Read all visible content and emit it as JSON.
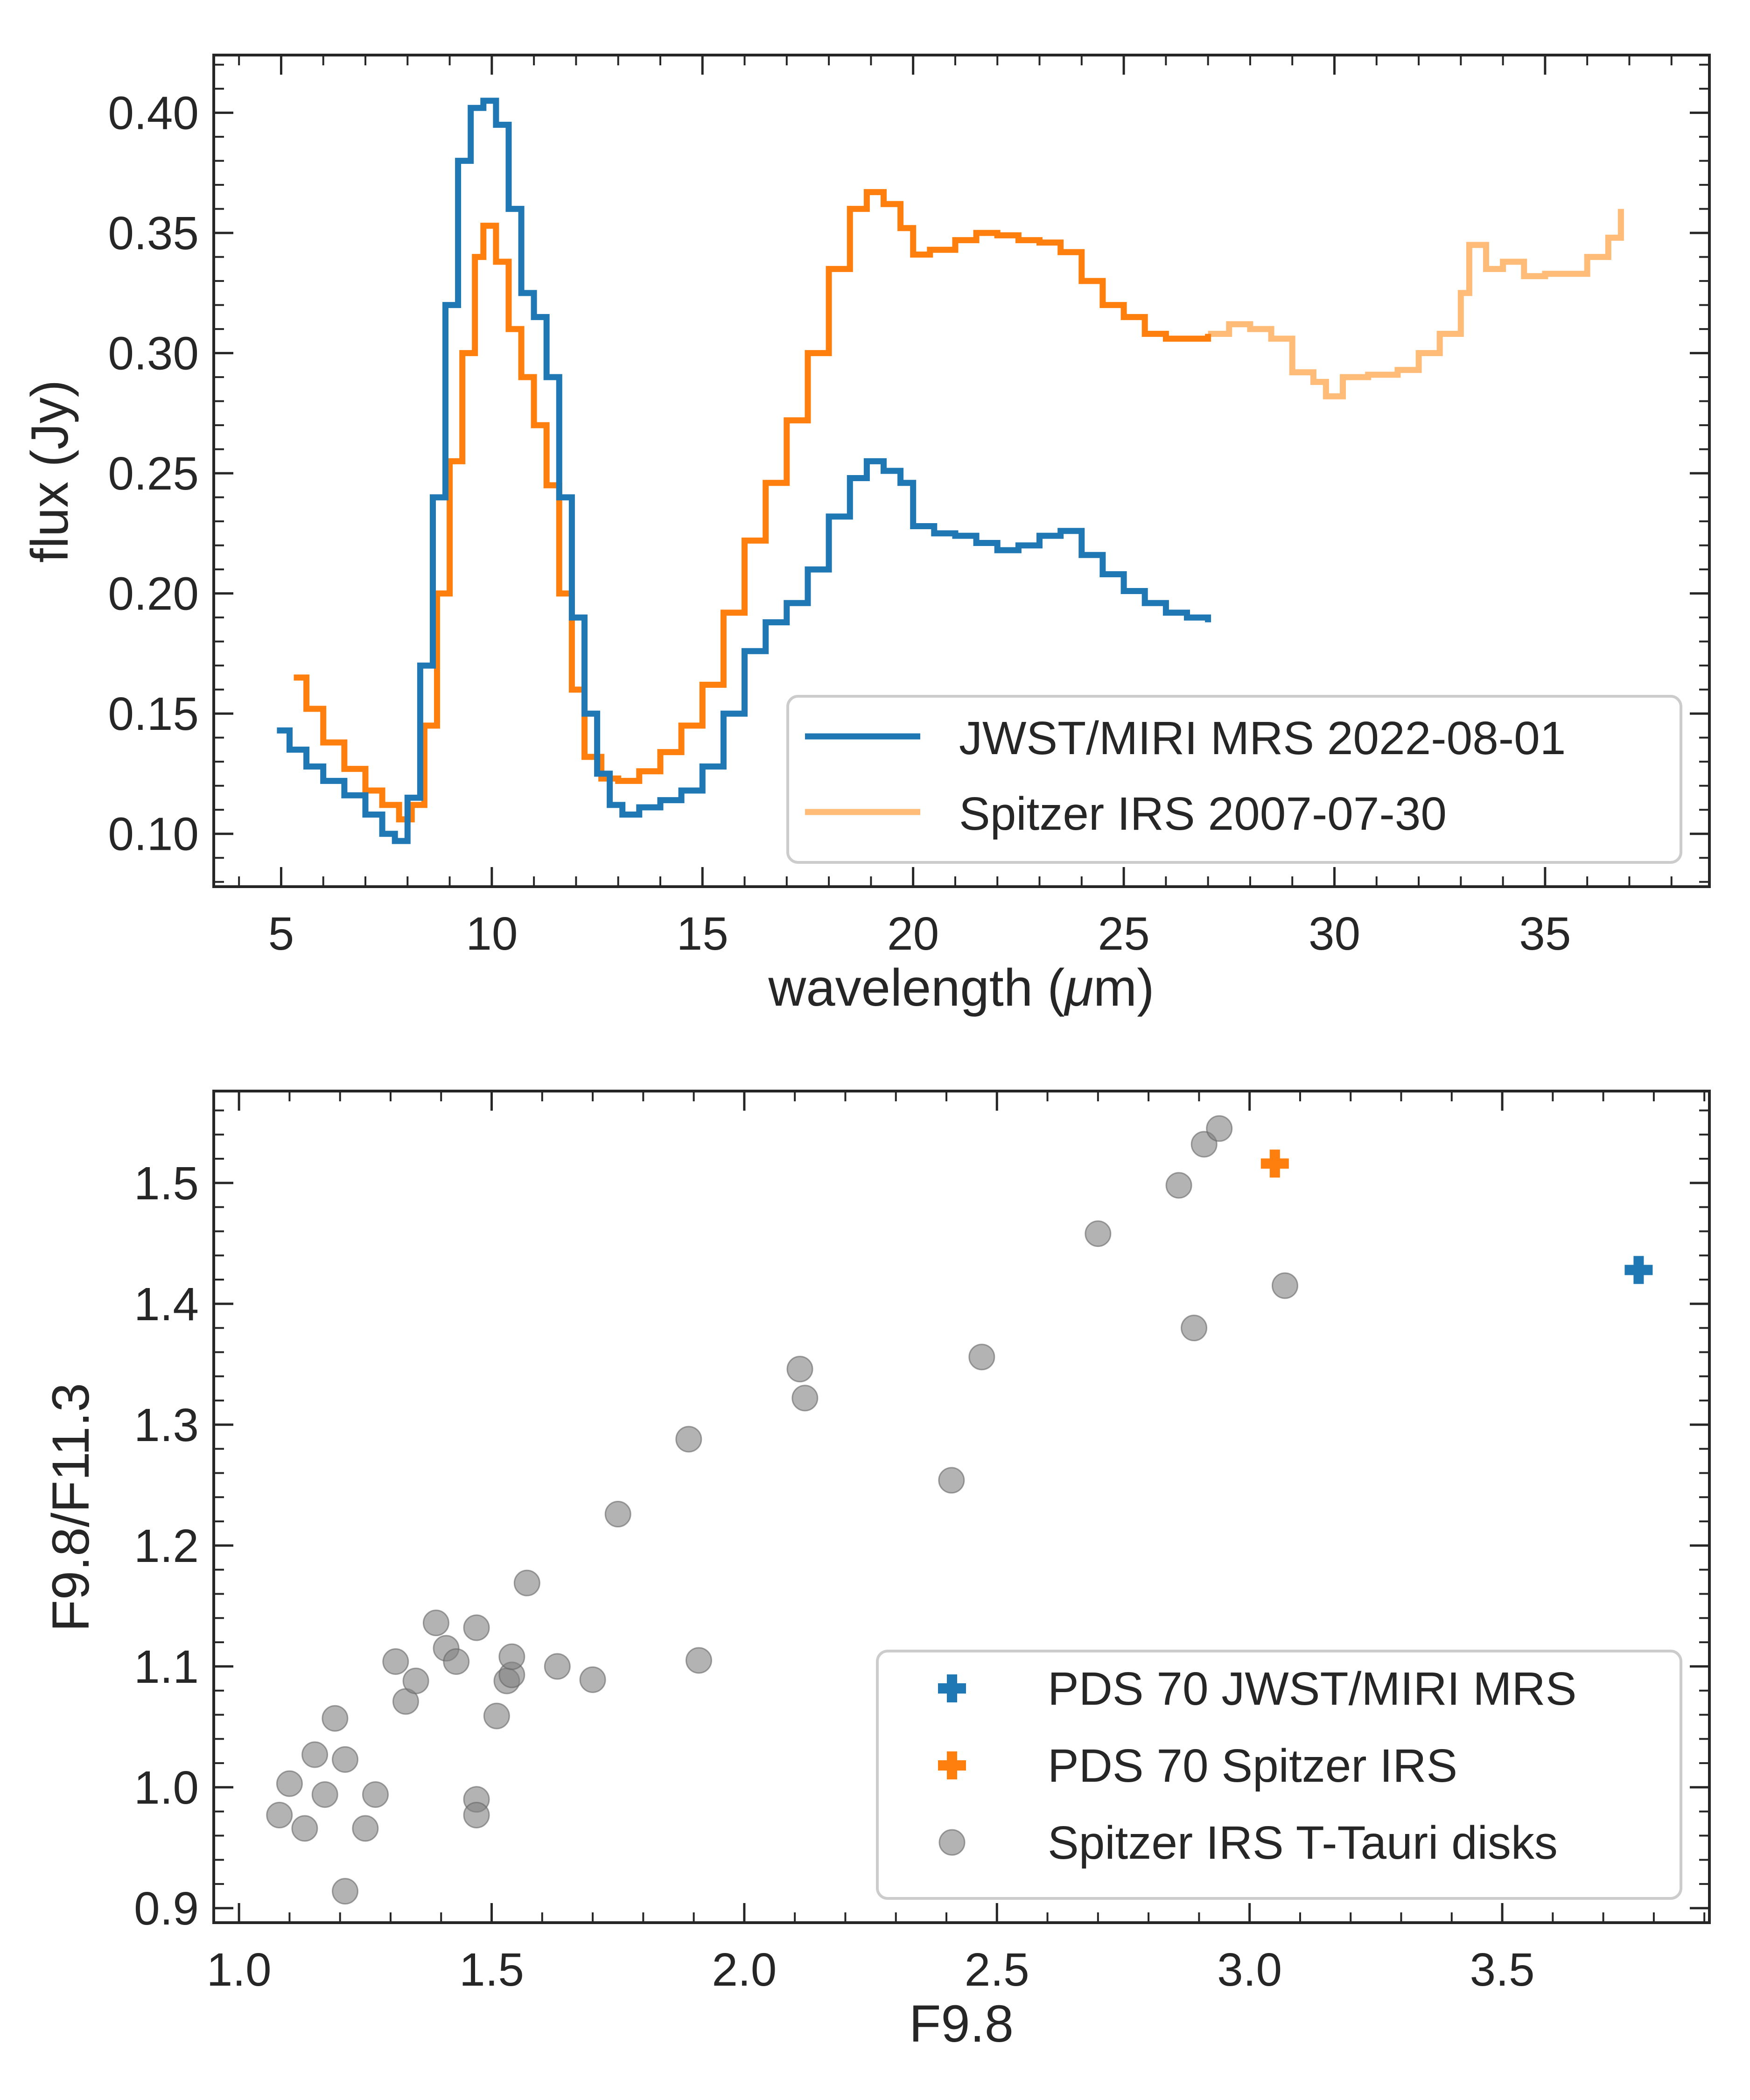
{
  "chart_data": [
    {
      "type": "line",
      "title": "",
      "xlabel_main": "wavelength (",
      "xlabel_mu": "μ",
      "xlabel_end": "m)",
      "ylabel": "flux (Jy)",
      "xlim": [
        3.4,
        38.9
      ],
      "ylim": [
        0.078,
        0.424
      ],
      "xticks": [
        5,
        10,
        15,
        20,
        25,
        30,
        35
      ],
      "xtick_labels": [
        "5",
        "10",
        "15",
        "20",
        "25",
        "30",
        "35"
      ],
      "yticks": [
        0.1,
        0.15,
        0.2,
        0.25,
        0.3,
        0.35,
        0.4
      ],
      "ytick_labels": [
        "0.10",
        "0.15",
        "0.20",
        "0.25",
        "0.30",
        "0.35",
        "0.40"
      ],
      "grid": false,
      "legend_position": "lower-right",
      "series": [
        {
          "name": "JWST/MIRI MRS 2022-08-01",
          "color": "#1f77b4",
          "x": [
            4.9,
            5.2,
            5.6,
            6.0,
            6.5,
            7.0,
            7.4,
            7.7,
            8.0,
            8.3,
            8.6,
            8.9,
            9.2,
            9.5,
            9.8,
            10.1,
            10.4,
            10.7,
            11.0,
            11.3,
            11.6,
            11.9,
            12.2,
            12.5,
            12.8,
            13.1,
            13.5,
            14.0,
            14.5,
            15.0,
            15.5,
            16.0,
            16.5,
            17.0,
            17.5,
            18.0,
            18.5,
            18.9,
            19.3,
            19.7,
            20.0,
            20.5,
            21.0,
            21.5,
            22.0,
            22.5,
            23.0,
            23.5,
            24.0,
            24.5,
            25.0,
            25.5,
            26.0,
            26.5,
            27.0
          ],
          "y": [
            0.143,
            0.135,
            0.128,
            0.122,
            0.116,
            0.108,
            0.1,
            0.097,
            0.115,
            0.17,
            0.24,
            0.32,
            0.38,
            0.402,
            0.405,
            0.395,
            0.36,
            0.325,
            0.315,
            0.29,
            0.24,
            0.19,
            0.15,
            0.125,
            0.112,
            0.108,
            0.111,
            0.114,
            0.118,
            0.128,
            0.15,
            0.176,
            0.188,
            0.196,
            0.21,
            0.232,
            0.248,
            0.255,
            0.251,
            0.246,
            0.228,
            0.225,
            0.224,
            0.221,
            0.218,
            0.22,
            0.224,
            0.226,
            0.216,
            0.208,
            0.201,
            0.196,
            0.192,
            0.19,
            0.188
          ]
        },
        {
          "name": "",
          "color": "#ff7f0e",
          "x": [
            5.3,
            5.6,
            6.0,
            6.5,
            7.0,
            7.4,
            7.8,
            8.1,
            8.4,
            8.7,
            9.0,
            9.3,
            9.6,
            9.8,
            10.1,
            10.4,
            10.7,
            11.0,
            11.3,
            11.6,
            11.9,
            12.2,
            12.6,
            13.0,
            13.5,
            14.0,
            14.5,
            15.0,
            15.5,
            16.0,
            16.5,
            17.0,
            17.5,
            18.0,
            18.5,
            18.9,
            19.3,
            19.7,
            20.0,
            20.4,
            21.0,
            21.5,
            22.0,
            22.5,
            23.0,
            23.5,
            24.0,
            24.5,
            25.0,
            25.5,
            26.0,
            26.5,
            27.0
          ],
          "y": [
            0.165,
            0.152,
            0.138,
            0.127,
            0.118,
            0.112,
            0.106,
            0.112,
            0.145,
            0.2,
            0.255,
            0.3,
            0.34,
            0.353,
            0.338,
            0.31,
            0.29,
            0.27,
            0.245,
            0.2,
            0.16,
            0.132,
            0.123,
            0.122,
            0.126,
            0.134,
            0.145,
            0.162,
            0.192,
            0.222,
            0.246,
            0.272,
            0.3,
            0.335,
            0.36,
            0.367,
            0.362,
            0.352,
            0.341,
            0.343,
            0.347,
            0.35,
            0.349,
            0.347,
            0.346,
            0.342,
            0.33,
            0.32,
            0.315,
            0.308,
            0.306,
            0.306,
            0.308
          ]
        },
        {
          "name": "Spitzer IRS 2007-07-30",
          "color": "#ffbb78",
          "x": [
            27.0,
            27.5,
            28.0,
            28.5,
            29.0,
            29.5,
            29.8,
            30.2,
            30.8,
            31.5,
            32.0,
            32.5,
            33.0,
            33.2,
            33.6,
            34.0,
            34.5,
            35.0,
            35.5,
            36.0,
            36.5,
            36.8
          ],
          "y": [
            0.308,
            0.312,
            0.31,
            0.306,
            0.292,
            0.288,
            0.282,
            0.29,
            0.291,
            0.293,
            0.3,
            0.308,
            0.325,
            0.345,
            0.335,
            0.338,
            0.332,
            0.333,
            0.333,
            0.34,
            0.348,
            0.36
          ]
        }
      ]
    },
    {
      "type": "scatter",
      "title": "",
      "xlabel": "F9.8",
      "ylabel": "F9.8/F11.3",
      "xlim": [
        0.95,
        3.91
      ],
      "ylim": [
        0.888,
        1.576
      ],
      "xticks": [
        1.0,
        1.5,
        2.0,
        2.5,
        3.0,
        3.5
      ],
      "xtick_labels": [
        "1.0",
        "1.5",
        "2.0",
        "2.5",
        "3.0",
        "3.5"
      ],
      "yticks": [
        0.9,
        1.0,
        1.1,
        1.2,
        1.3,
        1.4,
        1.5
      ],
      "ytick_labels": [
        "0.9",
        "1.0",
        "1.1",
        "1.2",
        "1.3",
        "1.4",
        "1.5"
      ],
      "grid": false,
      "legend_position": "lower-right",
      "series": [
        {
          "name": "PDS 70 JWST/MIRI MRS",
          "color": "#1f77b4",
          "marker": "plus",
          "points": [
            [
              3.77,
              1.428
            ]
          ]
        },
        {
          "name": "PDS 70 Spitzer IRS",
          "color": "#ff7f0e",
          "marker": "plus",
          "points": [
            [
              3.05,
              1.516
            ]
          ]
        },
        {
          "name": "Spitzer IRS T-Tauri disks",
          "color": "#808080",
          "marker": "circle",
          "points": [
            [
              1.08,
              0.977
            ],
            [
              1.1,
              1.003
            ],
            [
              1.13,
              0.966
            ],
            [
              1.15,
              1.027
            ],
            [
              1.17,
              0.994
            ],
            [
              1.19,
              1.057
            ],
            [
              1.21,
              1.023
            ],
            [
              1.21,
              0.914
            ],
            [
              1.25,
              0.966
            ],
            [
              1.27,
              0.994
            ],
            [
              1.31,
              1.104
            ],
            [
              1.33,
              1.071
            ],
            [
              1.35,
              1.088
            ],
            [
              1.39,
              1.136
            ],
            [
              1.41,
              1.115
            ],
            [
              1.43,
              1.104
            ],
            [
              1.47,
              1.132
            ],
            [
              1.47,
              0.99
            ],
            [
              1.47,
              0.977
            ],
            [
              1.51,
              1.059
            ],
            [
              1.53,
              1.088
            ],
            [
              1.54,
              1.093
            ],
            [
              1.54,
              1.108
            ],
            [
              1.57,
              1.169
            ],
            [
              1.63,
              1.1
            ],
            [
              1.7,
              1.089
            ],
            [
              1.75,
              1.226
            ],
            [
              1.89,
              1.288
            ],
            [
              1.91,
              1.105
            ],
            [
              2.11,
              1.346
            ],
            [
              2.12,
              1.322
            ],
            [
              2.41,
              1.254
            ],
            [
              2.47,
              1.356
            ],
            [
              2.7,
              1.458
            ],
            [
              2.86,
              1.498
            ],
            [
              2.89,
              1.38
            ],
            [
              2.91,
              1.532
            ],
            [
              2.94,
              1.545
            ],
            [
              3.07,
              1.415
            ]
          ]
        }
      ]
    }
  ]
}
